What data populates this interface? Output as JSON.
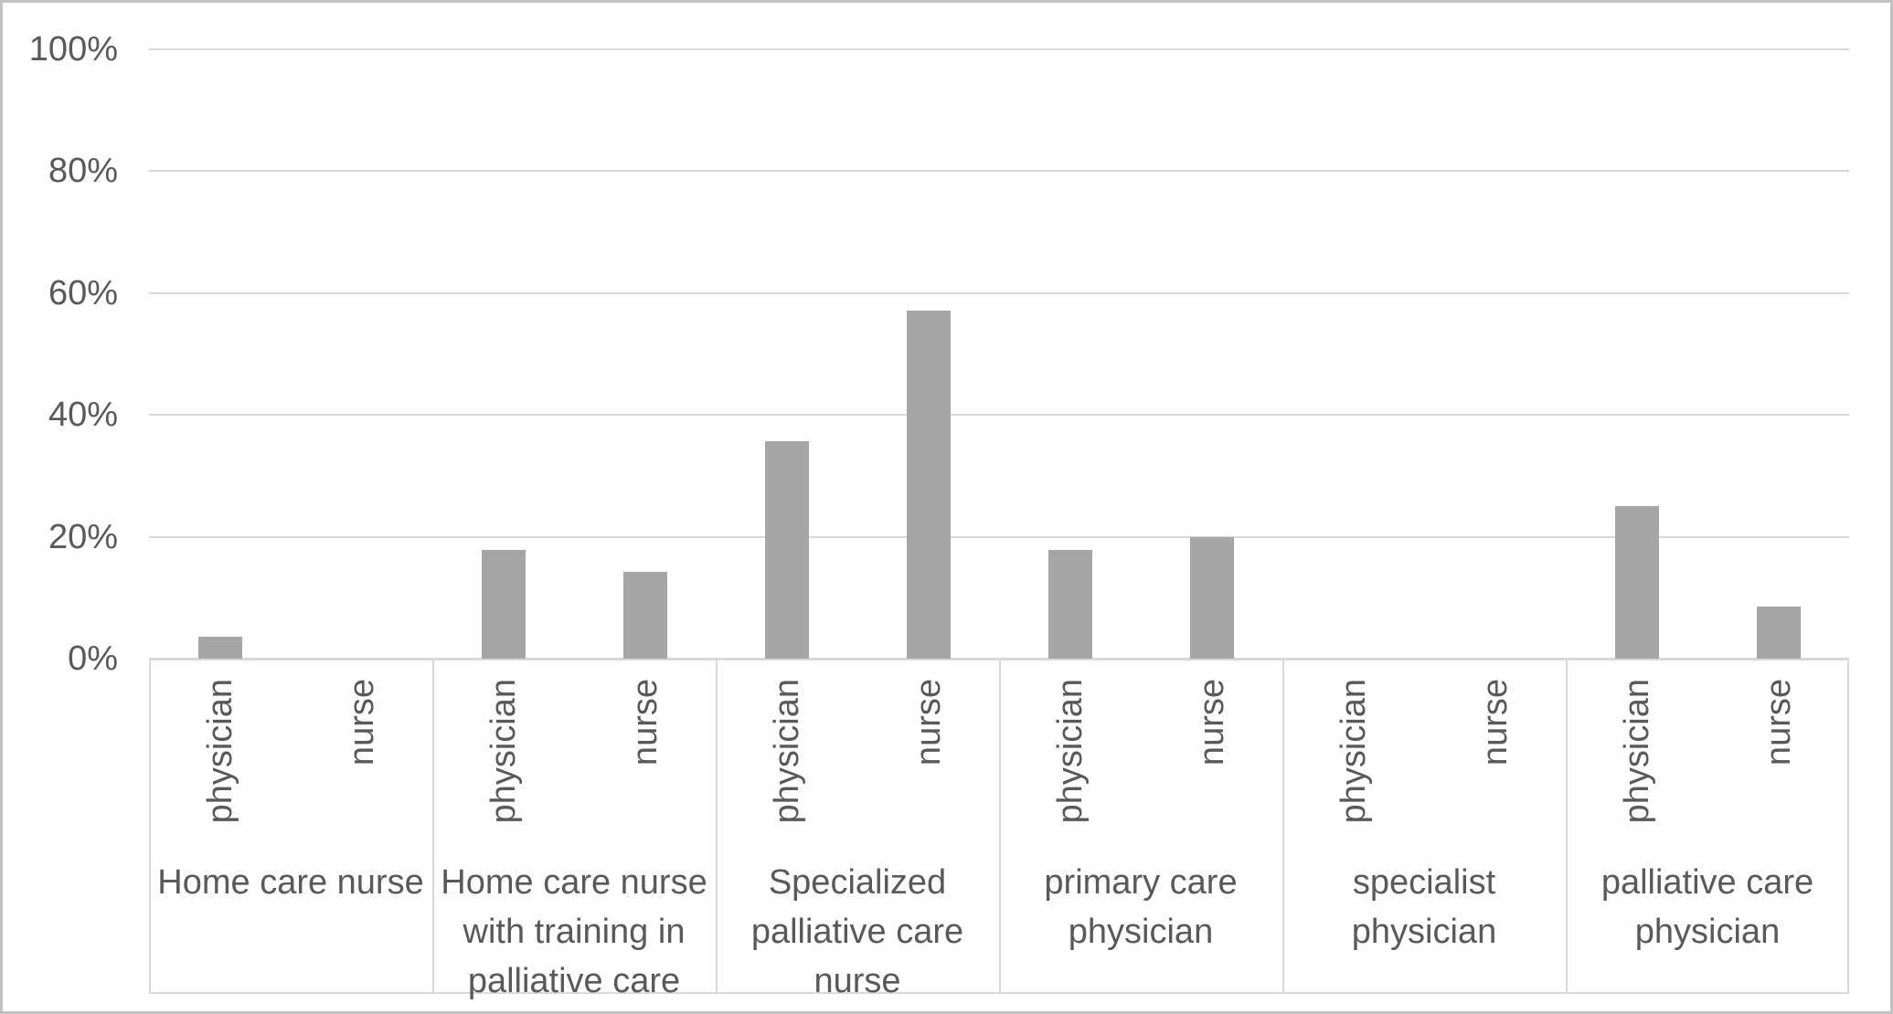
{
  "chart_data": {
    "type": "bar",
    "title": "",
    "xlabel": "",
    "ylabel": "",
    "ylim": [
      0,
      100
    ],
    "grid": "horizontal",
    "legend_position": "none",
    "yticks": [
      0,
      20,
      40,
      60,
      80,
      100
    ],
    "ytick_labels": [
      "0%",
      "20%",
      "40%",
      "60%",
      "80%",
      "100%"
    ],
    "categories": [
      "Home care nurse",
      "Home care nurse with training in palliative care",
      "Specialized palliative care nurse",
      "primary care physician",
      "specialist physician",
      "palliative care physician"
    ],
    "sub_categories": [
      "physician",
      "nurse"
    ],
    "series": [
      {
        "name": "physician",
        "values": [
          3.6,
          17.9,
          35.7,
          17.9,
          0,
          25.0
        ]
      },
      {
        "name": "nurse",
        "values": [
          0,
          14.3,
          57.1,
          20.0,
          0,
          8.6
        ]
      }
    ],
    "colors": {
      "bar": "#a6a6a6",
      "text": "#595959",
      "gridline": "#d9d9d9",
      "frame_border": "#c2c2c2"
    }
  }
}
